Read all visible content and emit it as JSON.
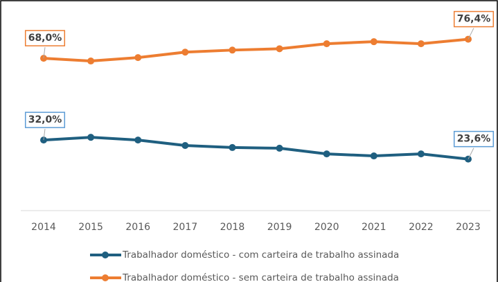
{
  "chart_data": {
    "type": "line",
    "categories": [
      "2014",
      "2015",
      "2016",
      "2017",
      "2018",
      "2019",
      "2020",
      "2021",
      "2022",
      "2023"
    ],
    "series": [
      {
        "name": "Trabalhador doméstico - com carteira de trabalho assinada",
        "color": "#1f5f80",
        "values": [
          32.0,
          33.2,
          32.0,
          29.6,
          28.7,
          28.4,
          25.9,
          25.0,
          25.9,
          23.6
        ],
        "value_labels": [
          "32,0%",
          null,
          null,
          null,
          null,
          null,
          null,
          null,
          null,
          "23,6%"
        ],
        "label_color": "#5b9bd5"
      },
      {
        "name": "Trabalhador doméstico - sem carteira de trabalho assinada",
        "color": "#ed7d31",
        "values": [
          68.0,
          66.8,
          68.3,
          70.7,
          71.6,
          72.2,
          74.4,
          75.3,
          74.4,
          76.4
        ],
        "value_labels": [
          "68,0%",
          null,
          null,
          null,
          null,
          null,
          null,
          null,
          null,
          "76,4%"
        ],
        "label_color": "#ed7d31"
      }
    ],
    "ylim": [
      0,
      90
    ]
  }
}
